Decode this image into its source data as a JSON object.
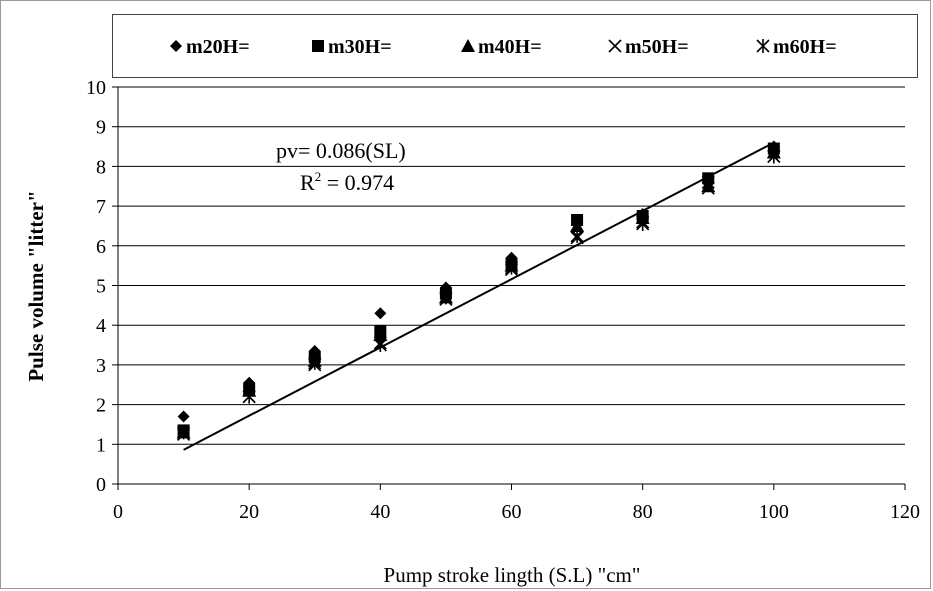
{
  "chart_data": {
    "type": "scatter",
    "xlabel": "Pump stroke lingth (S.L) \"cm\"",
    "ylabel": "Pulse volume \"litter\"",
    "xlim": [
      0,
      120
    ],
    "ylim": [
      0,
      10
    ],
    "xticks": [
      0,
      20,
      40,
      60,
      80,
      100,
      120
    ],
    "yticks": [
      0,
      1,
      2,
      3,
      4,
      5,
      6,
      7,
      8,
      9,
      10
    ],
    "grid": "horizontal",
    "legend_placement": "top",
    "x": [
      10,
      20,
      30,
      40,
      50,
      60,
      70,
      80,
      90,
      100
    ],
    "series": [
      {
        "name": "m20H=",
        "marker": "diamond",
        "values": [
          1.7,
          2.55,
          3.35,
          4.3,
          4.95,
          5.7,
          6.55,
          6.8,
          7.7,
          8.5
        ]
      },
      {
        "name": "m30H=",
        "marker": "square",
        "values": [
          1.35,
          2.4,
          3.2,
          3.85,
          4.8,
          5.55,
          6.65,
          6.75,
          7.7,
          8.45
        ]
      },
      {
        "name": "m40H=",
        "marker": "triangle",
        "values": [
          1.3,
          2.35,
          3.1,
          3.75,
          4.7,
          5.5,
          6.5,
          6.7,
          7.5,
          8.35
        ]
      },
      {
        "name": "m50H=",
        "marker": "x",
        "values": [
          1.25,
          2.2,
          3.0,
          3.55,
          4.65,
          5.4,
          6.2,
          6.6,
          7.45,
          8.25
        ]
      },
      {
        "name": "m60H=",
        "marker": "asterisk",
        "values": [
          1.3,
          2.2,
          3.05,
          3.5,
          4.7,
          5.45,
          6.25,
          6.55,
          7.6,
          8.25
        ]
      }
    ],
    "trendline": {
      "slope": 0.086,
      "x_range": [
        10,
        100
      ]
    },
    "annotations": {
      "equation": "pv= 0.086(SL)",
      "r2_prefix": "R",
      "r2_sup": "2",
      "r2_value": " = 0.974"
    }
  }
}
